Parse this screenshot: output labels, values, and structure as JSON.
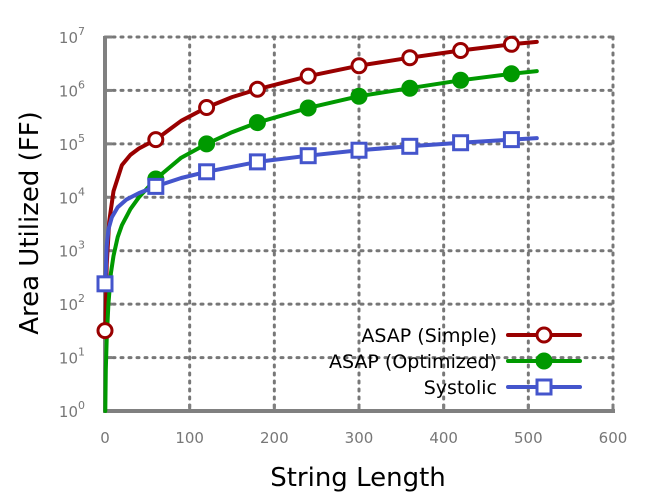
{
  "chart_data": {
    "type": "line",
    "xlabel": "String Length",
    "ylabel": "Area Utilized (FF)",
    "xlim": [
      0,
      600
    ],
    "ylim": [
      1,
      10000000
    ],
    "yscale": "log",
    "grid": true,
    "legend_position": "bottom-right",
    "x_ticks": [
      {
        "value": 0,
        "label": "0"
      },
      {
        "value": 100,
        "label": "100"
      },
      {
        "value": 200,
        "label": "200"
      },
      {
        "value": 300,
        "label": "300"
      },
      {
        "value": 400,
        "label": "400"
      },
      {
        "value": 500,
        "label": "500"
      },
      {
        "value": 600,
        "label": "600"
      }
    ],
    "y_ticks": [
      {
        "value": 1,
        "base": "10",
        "exp": "0"
      },
      {
        "value": 10,
        "base": "10",
        "exp": "1"
      },
      {
        "value": 100,
        "base": "10",
        "exp": "2"
      },
      {
        "value": 1000,
        "base": "10",
        "exp": "3"
      },
      {
        "value": 10000,
        "base": "10",
        "exp": "4"
      },
      {
        "value": 100000,
        "base": "10",
        "exp": "5"
      },
      {
        "value": 1000000,
        "base": "10",
        "exp": "6"
      },
      {
        "value": 10000000,
        "base": "10",
        "exp": "7"
      }
    ],
    "series": [
      {
        "name": "ASAP (Simple)",
        "color": "#990000",
        "marker": "circle-open",
        "points": [
          {
            "x": 0,
            "y": 32
          },
          {
            "x": 60,
            "y": 120000
          },
          {
            "x": 120,
            "y": 480000
          },
          {
            "x": 180,
            "y": 1050000
          },
          {
            "x": 240,
            "y": 1850000
          },
          {
            "x": 300,
            "y": 2900000
          },
          {
            "x": 360,
            "y": 4100000
          },
          {
            "x": 420,
            "y": 5600000
          },
          {
            "x": 480,
            "y": 7300000
          }
        ],
        "curve": [
          {
            "x": 0.5,
            "y": 32
          },
          {
            "x": 2,
            "y": 550
          },
          {
            "x": 5,
            "y": 3500
          },
          {
            "x": 10,
            "y": 13000
          },
          {
            "x": 20,
            "y": 40000
          },
          {
            "x": 30,
            "y": 62000
          },
          {
            "x": 40,
            "y": 82000
          },
          {
            "x": 60,
            "y": 120000
          },
          {
            "x": 90,
            "y": 270000
          },
          {
            "x": 120,
            "y": 480000
          },
          {
            "x": 150,
            "y": 750000
          },
          {
            "x": 180,
            "y": 1050000
          },
          {
            "x": 240,
            "y": 1850000
          },
          {
            "x": 300,
            "y": 2900000
          },
          {
            "x": 360,
            "y": 4100000
          },
          {
            "x": 420,
            "y": 5600000
          },
          {
            "x": 480,
            "y": 7300000
          },
          {
            "x": 510,
            "y": 8100000
          }
        ]
      },
      {
        "name": "ASAP (Optimized)",
        "color": "#009900",
        "marker": "circle-filled",
        "points": [
          {
            "x": 60,
            "y": 22000
          },
          {
            "x": 120,
            "y": 100000
          },
          {
            "x": 180,
            "y": 250000
          },
          {
            "x": 240,
            "y": 470000
          },
          {
            "x": 300,
            "y": 780000
          },
          {
            "x": 360,
            "y": 1100000
          },
          {
            "x": 420,
            "y": 1550000
          },
          {
            "x": 480,
            "y": 2050000
          }
        ],
        "curve": [
          {
            "x": 0.3,
            "y": 1
          },
          {
            "x": 1,
            "y": 6
          },
          {
            "x": 2,
            "y": 22
          },
          {
            "x": 4,
            "y": 100
          },
          {
            "x": 7,
            "y": 380
          },
          {
            "x": 10,
            "y": 800
          },
          {
            "x": 15,
            "y": 1800
          },
          {
            "x": 20,
            "y": 3000
          },
          {
            "x": 30,
            "y": 6000
          },
          {
            "x": 40,
            "y": 10000
          },
          {
            "x": 60,
            "y": 22000
          },
          {
            "x": 90,
            "y": 55000
          },
          {
            "x": 120,
            "y": 100000
          },
          {
            "x": 150,
            "y": 165000
          },
          {
            "x": 180,
            "y": 250000
          },
          {
            "x": 240,
            "y": 470000
          },
          {
            "x": 300,
            "y": 780000
          },
          {
            "x": 360,
            "y": 1100000
          },
          {
            "x": 420,
            "y": 1550000
          },
          {
            "x": 480,
            "y": 2050000
          },
          {
            "x": 510,
            "y": 2300000
          }
        ]
      },
      {
        "name": "Systolic",
        "color": "#4455cc",
        "marker": "square-open",
        "points": [
          {
            "x": 0,
            "y": 240
          },
          {
            "x": 60,
            "y": 16000
          },
          {
            "x": 120,
            "y": 30000
          },
          {
            "x": 180,
            "y": 46000
          },
          {
            "x": 240,
            "y": 60000
          },
          {
            "x": 300,
            "y": 76000
          },
          {
            "x": 360,
            "y": 90000
          },
          {
            "x": 420,
            "y": 105000
          },
          {
            "x": 480,
            "y": 120000
          }
        ],
        "curve": [
          {
            "x": 0.5,
            "y": 240
          },
          {
            "x": 2,
            "y": 1200
          },
          {
            "x": 4,
            "y": 2500
          },
          {
            "x": 8,
            "y": 4200
          },
          {
            "x": 15,
            "y": 6500
          },
          {
            "x": 25,
            "y": 9000
          },
          {
            "x": 40,
            "y": 12000
          },
          {
            "x": 60,
            "y": 16000
          },
          {
            "x": 90,
            "y": 23000
          },
          {
            "x": 120,
            "y": 30000
          },
          {
            "x": 180,
            "y": 46000
          },
          {
            "x": 240,
            "y": 60000
          },
          {
            "x": 300,
            "y": 76000
          },
          {
            "x": 360,
            "y": 90000
          },
          {
            "x": 420,
            "y": 105000
          },
          {
            "x": 480,
            "y": 120000
          },
          {
            "x": 510,
            "y": 128000
          }
        ]
      }
    ]
  }
}
